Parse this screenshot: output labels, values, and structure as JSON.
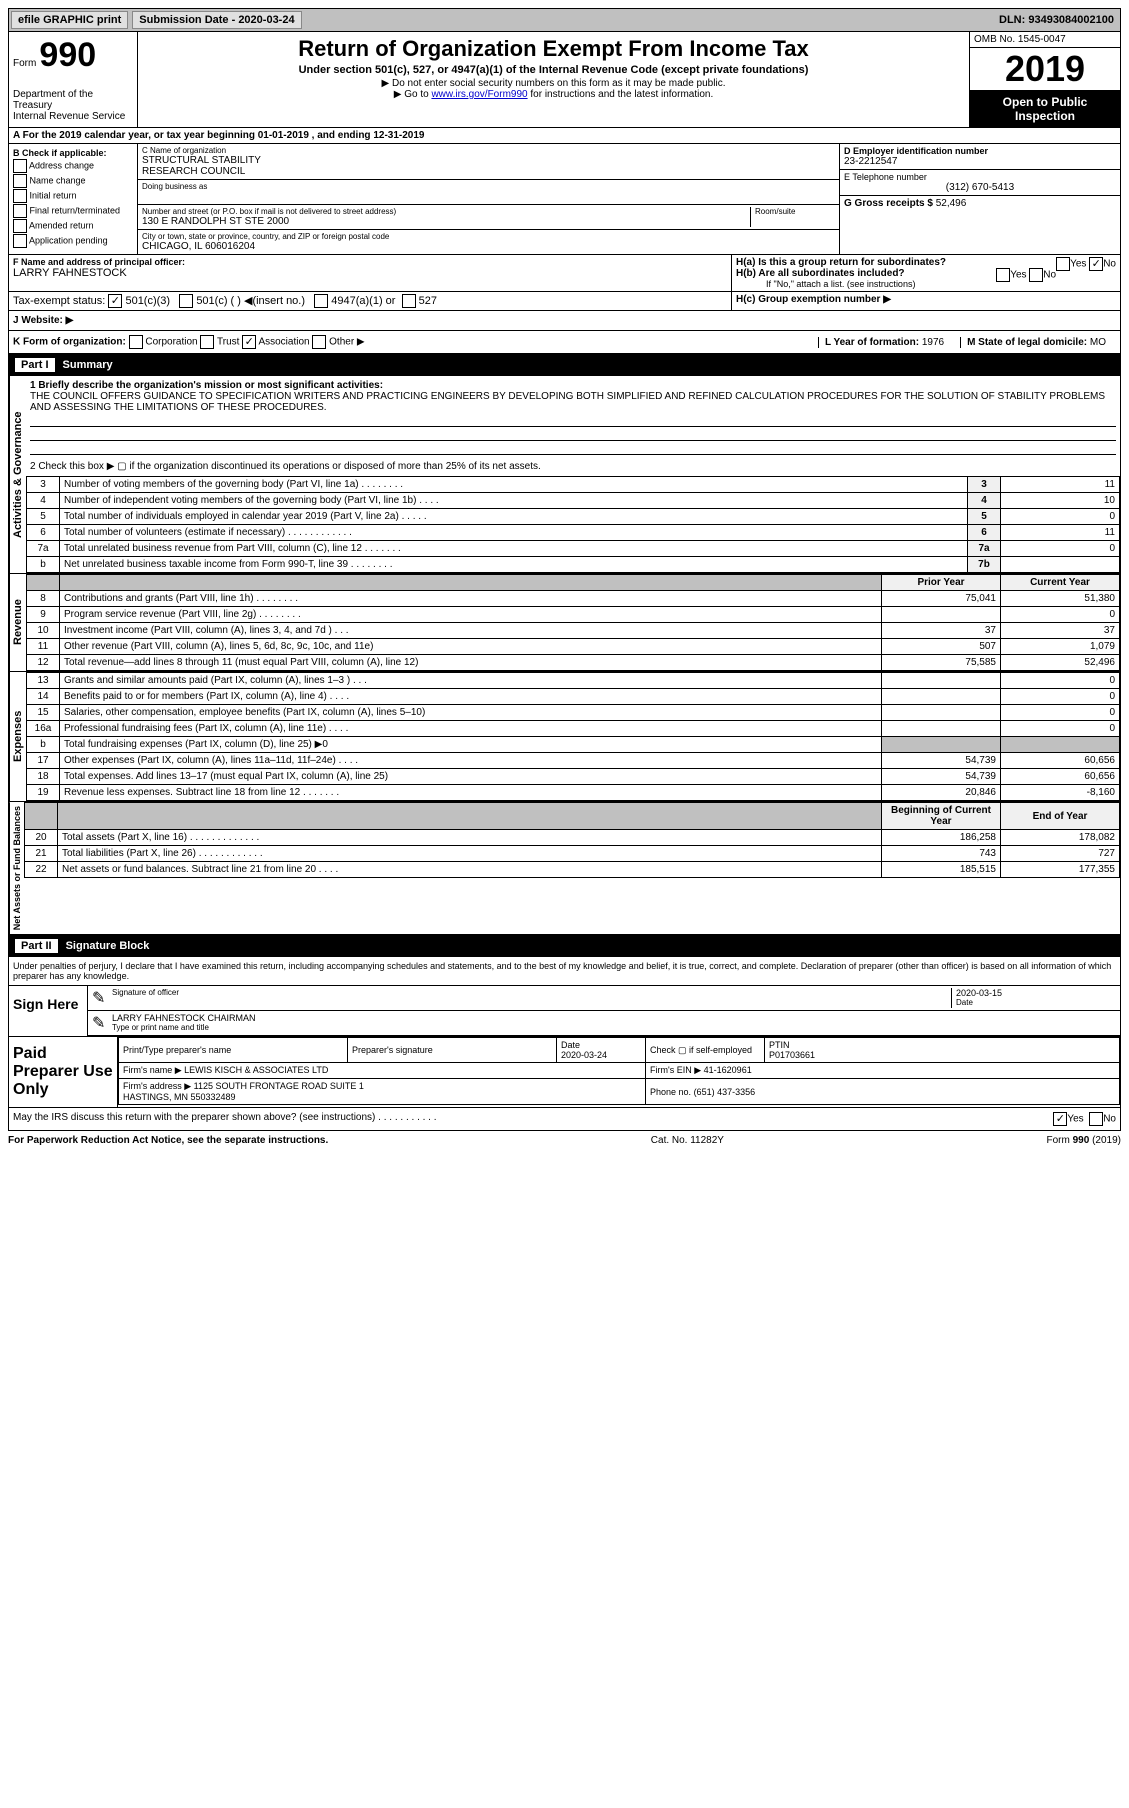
{
  "topbar": {
    "efile": "efile GRAPHIC print",
    "submission_label": "Submission Date - 2020-03-24",
    "dln": "DLN: 93493084002100"
  },
  "header": {
    "form_label": "Form",
    "form_num": "990",
    "title": "Return of Organization Exempt From Income Tax",
    "subtitle": "Under section 501(c), 527, or 4947(a)(1) of the Internal Revenue Code (except private foundations)",
    "note1": "▶ Do not enter social security numbers on this form as it may be made public.",
    "note2_pre": "▶ Go to ",
    "note2_link": "www.irs.gov/Form990",
    "note2_post": " for instructions and the latest information.",
    "omb": "OMB No. 1545-0047",
    "year": "2019",
    "inspection": "Open to Public Inspection",
    "dept": "Department of the Treasury\nInternal Revenue Service"
  },
  "period": "A For the 2019 calendar year, or tax year beginning 01-01-2019    , and ending 12-31-2019",
  "colB": {
    "header": "B Check if applicable:",
    "items": [
      "Address change",
      "Name change",
      "Initial return",
      "Final return/terminated",
      "Amended return",
      "Application pending"
    ]
  },
  "colC": {
    "name_label": "C Name of organization",
    "name": "STRUCTURAL STABILITY\nRESEARCH COUNCIL",
    "dba_label": "Doing business as",
    "addr_label": "Number and street (or P.O. box if mail is not delivered to street address)",
    "room_label": "Room/suite",
    "addr": "130 E RANDOLPH ST STE 2000",
    "city_label": "City or town, state or province, country, and ZIP or foreign postal code",
    "city": "CHICAGO, IL  606016204"
  },
  "colD": {
    "ein_label": "D Employer identification number",
    "ein": "23-2212547",
    "phone_label": "E Telephone number",
    "phone": "(312) 670-5413",
    "gross_label": "G Gross receipts $",
    "gross": "52,496"
  },
  "rowF": {
    "label": "F  Name and address of principal officer:",
    "name": "LARRY FAHNESTOCK"
  },
  "rowH": {
    "ha": "H(a)  Is this a group return for subordinates?",
    "hb": "H(b)  Are all subordinates included?",
    "hb_note": "If \"No,\" attach a list. (see instructions)",
    "hc": "H(c)  Group exemption number ▶",
    "yes": "Yes",
    "no": "No"
  },
  "taxexempt": {
    "label": "Tax-exempt status:",
    "opt1": "501(c)(3)",
    "opt2": "501(c) (   ) ◀(insert no.)",
    "opt3": "4947(a)(1) or",
    "opt4": "527"
  },
  "rowJ": {
    "label": "J   Website: ▶"
  },
  "rowK": {
    "label": "K Form of organization:",
    "opts": [
      "Corporation",
      "Trust",
      "Association",
      "Other ▶"
    ],
    "checked_idx": 2,
    "year_label": "L Year of formation:",
    "year": "1976",
    "state_label": "M State of legal domicile:",
    "state": "MO"
  },
  "partI": {
    "label": "Part I",
    "title": "Summary",
    "q1": "1   Briefly describe the organization's mission or most significant activities:",
    "q1_text": "THE COUNCIL OFFERS GUIDANCE TO SPECIFICATION WRITERS AND PRACTICING ENGINEERS BY DEVELOPING BOTH SIMPLIFIED AND REFINED CALCULATION PROCEDURES FOR THE SOLUTION OF STABILITY PROBLEMS AND ASSESSING THE LIMITATIONS OF THESE PROCEDURES.",
    "q2": "2    Check this box ▶ ▢  if the organization discontinued its operations or disposed of more than 25% of its net assets.",
    "gov_label": "Activities & Governance",
    "rev_label": "Revenue",
    "exp_label": "Expenses",
    "net_label": "Net Assets or Fund Balances",
    "lines_gov": [
      {
        "n": "3",
        "d": "Number of voting members of the governing body (Part VI, line 1a)   .   .   .   .   .   .   .   .",
        "b": "3",
        "v": "11"
      },
      {
        "n": "4",
        "d": "Number of independent voting members of the governing body (Part VI, line 1b)   .   .   .   .",
        "b": "4",
        "v": "10"
      },
      {
        "n": "5",
        "d": "Total number of individuals employed in calendar year 2019 (Part V, line 2a)   .   .   .   .   .",
        "b": "5",
        "v": "0"
      },
      {
        "n": "6",
        "d": "Total number of volunteers (estimate if necessary)    .   .   .   .   .   .   .   .   .   .   .   .",
        "b": "6",
        "v": "11"
      },
      {
        "n": "7a",
        "d": "Total unrelated business revenue from Part VIII, column (C), line 12   .   .   .   .   .   .   .",
        "b": "7a",
        "v": "0"
      },
      {
        "n": "b",
        "d": "Net unrelated business taxable income from Form 990-T, line 39   .   .   .   .   .   .   .   .",
        "b": "7b",
        "v": ""
      }
    ],
    "prior_label": "Prior Year",
    "current_label": "Current Year",
    "lines_rev": [
      {
        "n": "8",
        "d": "Contributions and grants (Part VIII, line 1h)   .   .   .   .   .   .   .   .",
        "p": "75,041",
        "c": "51,380"
      },
      {
        "n": "9",
        "d": "Program service revenue (Part VIII, line 2g)   .   .   .   .   .   .   .   .",
        "p": "",
        "c": "0"
      },
      {
        "n": "10",
        "d": "Investment income (Part VIII, column (A), lines 3, 4, and 7d )    .   .   .",
        "p": "37",
        "c": "37"
      },
      {
        "n": "11",
        "d": "Other revenue (Part VIII, column (A), lines 5, 6d, 8c, 9c, 10c, and 11e)",
        "p": "507",
        "c": "1,079"
      },
      {
        "n": "12",
        "d": "Total revenue—add lines 8 through 11 (must equal Part VIII, column (A), line 12)",
        "p": "75,585",
        "c": "52,496"
      }
    ],
    "lines_exp": [
      {
        "n": "13",
        "d": "Grants and similar amounts paid (Part IX, column (A), lines 1–3 )   .   .   .",
        "p": "",
        "c": "0"
      },
      {
        "n": "14",
        "d": "Benefits paid to or for members (Part IX, column (A), line 4)   .   .   .   .",
        "p": "",
        "c": "0"
      },
      {
        "n": "15",
        "d": "Salaries, other compensation, employee benefits (Part IX, column (A), lines 5–10)",
        "p": "",
        "c": "0"
      },
      {
        "n": "16a",
        "d": "Professional fundraising fees (Part IX, column (A), line 11e)   .   .   .   .",
        "p": "",
        "c": "0"
      },
      {
        "n": "b",
        "d": "Total fundraising expenses (Part IX, column (D), line 25) ▶0",
        "p": "shade",
        "c": "shade"
      },
      {
        "n": "17",
        "d": "Other expenses (Part IX, column (A), lines 11a–11d, 11f–24e)   .   .   .   .",
        "p": "54,739",
        "c": "60,656"
      },
      {
        "n": "18",
        "d": "Total expenses. Add lines 13–17 (must equal Part IX, column (A), line 25)",
        "p": "54,739",
        "c": "60,656"
      },
      {
        "n": "19",
        "d": "Revenue less expenses. Subtract line 18 from line 12   .   .   .   .   .   .   .",
        "p": "20,846",
        "c": "-8,160"
      }
    ],
    "beg_label": "Beginning of Current Year",
    "end_label": "End of Year",
    "lines_net": [
      {
        "n": "20",
        "d": "Total assets (Part X, line 16)   .   .   .   .   .   .   .   .   .   .   .   .   .",
        "p": "186,258",
        "c": "178,082"
      },
      {
        "n": "21",
        "d": "Total liabilities (Part X, line 26)   .   .   .   .   .   .   .   .   .   .   .   .",
        "p": "743",
        "c": "727"
      },
      {
        "n": "22",
        "d": "Net assets or fund balances. Subtract line 21 from line 20   .   .   .   .",
        "p": "185,515",
        "c": "177,355"
      }
    ]
  },
  "partII": {
    "label": "Part II",
    "title": "Signature Block",
    "declaration": "Under penalties of perjury, I declare that I have examined this return, including accompanying schedules and statements, and to the best of my knowledge and belief, it is true, correct, and complete. Declaration of preparer (other than officer) is based on all information of which preparer has any knowledge.",
    "sign_here": "Sign Here",
    "sig_officer": "Signature of officer",
    "date_label": "Date",
    "sig_date": "2020-03-15",
    "name_title": "LARRY FAHNESTOCK  CHAIRMAN",
    "name_title_label": "Type or print name and title"
  },
  "preparer": {
    "label": "Paid Preparer Use Only",
    "h_name": "Print/Type preparer's name",
    "h_sig": "Preparer's signature",
    "h_date": "Date",
    "date": "2020-03-24",
    "check_label": "Check ▢ if self-employed",
    "ptin_label": "PTIN",
    "ptin": "P01703661",
    "firm_name_label": "Firm's name     ▶",
    "firm_name": "LEWIS KISCH & ASSOCIATES LTD",
    "firm_ein_label": "Firm's EIN ▶",
    "firm_ein": "41-1620961",
    "firm_addr_label": "Firm's address ▶",
    "firm_addr": "1125 SOUTH FRONTAGE ROAD SUITE 1\nHASTINGS, MN  550332489",
    "phone_label": "Phone no.",
    "phone": "(651) 437-3356",
    "discuss": "May the IRS discuss this return with the preparer shown above? (see instructions)    .   .   .   .   .   .   .   .   .   .   .",
    "yes": "Yes",
    "no": "No"
  },
  "footer": {
    "paperwork": "For Paperwork Reduction Act Notice, see the separate instructions.",
    "cat": "Cat. No. 11282Y",
    "form": "Form 990 (2019)"
  }
}
